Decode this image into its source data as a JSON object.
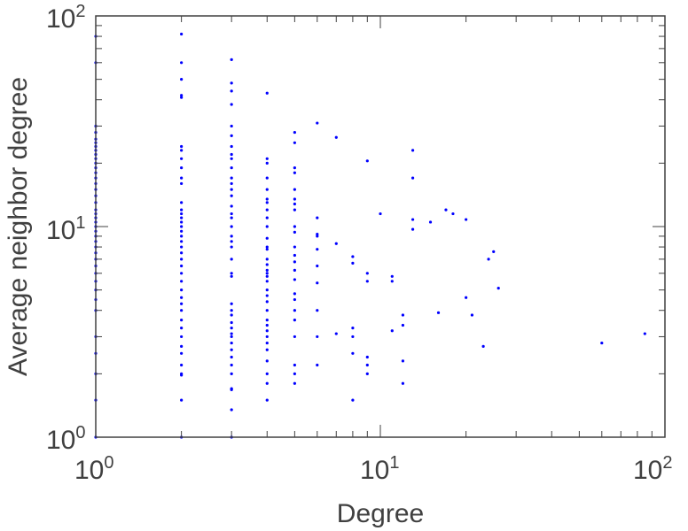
{
  "chart_data": {
    "type": "scatter",
    "title": "",
    "xlabel": "Degree",
    "ylabel": "Average neighbor degree",
    "xscale": "log",
    "yscale": "log",
    "xlim": [
      1,
      100
    ],
    "ylim": [
      1,
      100
    ],
    "grid": false,
    "x_ticks": [
      {
        "value": 1,
        "base": "10",
        "exp": "0"
      },
      {
        "value": 10,
        "base": "10",
        "exp": "1"
      },
      {
        "value": 100,
        "base": "10",
        "exp": "2"
      }
    ],
    "y_ticks": [
      {
        "value": 1,
        "base": "10",
        "exp": "0"
      },
      {
        "value": 10,
        "base": "10",
        "exp": "1"
      },
      {
        "value": 100,
        "base": "10",
        "exp": "2"
      }
    ],
    "marker_color": "#0000ff",
    "axis_color": "#404040",
    "points": [
      [
        1,
        80
      ],
      [
        1,
        60
      ],
      [
        1,
        30
      ],
      [
        1,
        28
      ],
      [
        1,
        26
      ],
      [
        1,
        25
      ],
      [
        1,
        24
      ],
      [
        1,
        23
      ],
      [
        1,
        22
      ],
      [
        1,
        21
      ],
      [
        1,
        20
      ],
      [
        1,
        19
      ],
      [
        1,
        18
      ],
      [
        1,
        17
      ],
      [
        1,
        16
      ],
      [
        1,
        15
      ],
      [
        1,
        14
      ],
      [
        1,
        13
      ],
      [
        1,
        12
      ],
      [
        1,
        11.5
      ],
      [
        1,
        11
      ],
      [
        1,
        10.5
      ],
      [
        1,
        10
      ],
      [
        1,
        9.5
      ],
      [
        1,
        9
      ],
      [
        1,
        8.5
      ],
      [
        1,
        8
      ],
      [
        1,
        7.5
      ],
      [
        1,
        7
      ],
      [
        1,
        6.5
      ],
      [
        1,
        6
      ],
      [
        1,
        5.5
      ],
      [
        1,
        5
      ],
      [
        1,
        4.5
      ],
      [
        1,
        4
      ],
      [
        1,
        3
      ],
      [
        1,
        2.5
      ],
      [
        1,
        2
      ],
      [
        1,
        1.5
      ],
      [
        1,
        1
      ],
      [
        2,
        82
      ],
      [
        2,
        60
      ],
      [
        2,
        50
      ],
      [
        2,
        42
      ],
      [
        2,
        41
      ],
      [
        2,
        24
      ],
      [
        2,
        23
      ],
      [
        2,
        21
      ],
      [
        2,
        19
      ],
      [
        2,
        17
      ],
      [
        2,
        16
      ],
      [
        2,
        13
      ],
      [
        2,
        12
      ],
      [
        2,
        11.5
      ],
      [
        2,
        11
      ],
      [
        2,
        10.5
      ],
      [
        2,
        10
      ],
      [
        2,
        9.5
      ],
      [
        2,
        9
      ],
      [
        2,
        8.5
      ],
      [
        2,
        8
      ],
      [
        2,
        7.5
      ],
      [
        2,
        7
      ],
      [
        2,
        6.5
      ],
      [
        2,
        6
      ],
      [
        2,
        5.5
      ],
      [
        2,
        5
      ],
      [
        2,
        4.6
      ],
      [
        2,
        4.3
      ],
      [
        2,
        4
      ],
      [
        2,
        3.6
      ],
      [
        2,
        3.3
      ],
      [
        2,
        3
      ],
      [
        2,
        2.7
      ],
      [
        2,
        2.5
      ],
      [
        2,
        2.2
      ],
      [
        2,
        2
      ],
      [
        2,
        1.97
      ],
      [
        2,
        1.5
      ],
      [
        2,
        1
      ],
      [
        3,
        62
      ],
      [
        3,
        48
      ],
      [
        3,
        44
      ],
      [
        3,
        38
      ],
      [
        3,
        30
      ],
      [
        3,
        27
      ],
      [
        3,
        24
      ],
      [
        3,
        22
      ],
      [
        3,
        21
      ],
      [
        3,
        19
      ],
      [
        3,
        17
      ],
      [
        3,
        16
      ],
      [
        3,
        15
      ],
      [
        3,
        14
      ],
      [
        3,
        12.5
      ],
      [
        3,
        11.5
      ],
      [
        3,
        11
      ],
      [
        3,
        10
      ],
      [
        3,
        9
      ],
      [
        3,
        8.5
      ],
      [
        3,
        8
      ],
      [
        3,
        7
      ],
      [
        3,
        6
      ],
      [
        3,
        5.8
      ],
      [
        3,
        4.3
      ],
      [
        3,
        4
      ],
      [
        3,
        3.8
      ],
      [
        3,
        3.5
      ],
      [
        3,
        3.3
      ],
      [
        3,
        3.1
      ],
      [
        3,
        3
      ],
      [
        3,
        2.8
      ],
      [
        3,
        2.6
      ],
      [
        3,
        2.4
      ],
      [
        3,
        2.2
      ],
      [
        3,
        2
      ],
      [
        3,
        1.7
      ],
      [
        3,
        1.68
      ],
      [
        3,
        1.35
      ],
      [
        3,
        1
      ],
      [
        4,
        43
      ],
      [
        4,
        21
      ],
      [
        4,
        20
      ],
      [
        4,
        17
      ],
      [
        4,
        15
      ],
      [
        4,
        13.5
      ],
      [
        4,
        13
      ],
      [
        4,
        12
      ],
      [
        4,
        11
      ],
      [
        4,
        10
      ],
      [
        4,
        8.8
      ],
      [
        4,
        8
      ],
      [
        4,
        7.8
      ],
      [
        4,
        7
      ],
      [
        4,
        6.6
      ],
      [
        4,
        6.2
      ],
      [
        4,
        6
      ],
      [
        4,
        5.8
      ],
      [
        4,
        5.5
      ],
      [
        4,
        5
      ],
      [
        4,
        4.7
      ],
      [
        4,
        4.4
      ],
      [
        4,
        4
      ],
      [
        4,
        3.6
      ],
      [
        4,
        3.4
      ],
      [
        4,
        3.2
      ],
      [
        4,
        3
      ],
      [
        4,
        2.8
      ],
      [
        4,
        2.6
      ],
      [
        4,
        2.3
      ],
      [
        4,
        2
      ],
      [
        4,
        1.8
      ],
      [
        4,
        1.5
      ],
      [
        5,
        28
      ],
      [
        5,
        25
      ],
      [
        5,
        19
      ],
      [
        5,
        18
      ],
      [
        5,
        15
      ],
      [
        5,
        13.5
      ],
      [
        5,
        12.8
      ],
      [
        5,
        12
      ],
      [
        5,
        10
      ],
      [
        5,
        9.4
      ],
      [
        5,
        8
      ],
      [
        5,
        7.3
      ],
      [
        5,
        6.8
      ],
      [
        5,
        6.2
      ],
      [
        5,
        5.6
      ],
      [
        5,
        4.8
      ],
      [
        5,
        4.5
      ],
      [
        5,
        4
      ],
      [
        5,
        3.6
      ],
      [
        5,
        3
      ],
      [
        5,
        2.2
      ],
      [
        5,
        2
      ],
      [
        5,
        1.8
      ],
      [
        6,
        31
      ],
      [
        6,
        11
      ],
      [
        6,
        9.2
      ],
      [
        6,
        9
      ],
      [
        6,
        7.8
      ],
      [
        6,
        6.5
      ],
      [
        6,
        5.4
      ],
      [
        6,
        4
      ],
      [
        6,
        3
      ],
      [
        6,
        2.2
      ],
      [
        7,
        26.5
      ],
      [
        7,
        8.3
      ],
      [
        7,
        3.1
      ],
      [
        8,
        7.2
      ],
      [
        8,
        6.7
      ],
      [
        8,
        3.3
      ],
      [
        8,
        3
      ],
      [
        8,
        2.5
      ],
      [
        8,
        1.5
      ],
      [
        9,
        20.5
      ],
      [
        9,
        6
      ],
      [
        9,
        5.5
      ],
      [
        9,
        2.4
      ],
      [
        9,
        2.2
      ],
      [
        9,
        2
      ],
      [
        10,
        11.5
      ],
      [
        11,
        5.8
      ],
      [
        11,
        5.5
      ],
      [
        11,
        3.2
      ],
      [
        12,
        3.8
      ],
      [
        12,
        3.4
      ],
      [
        12,
        2.3
      ],
      [
        12,
        1.8
      ],
      [
        13,
        23
      ],
      [
        13,
        17
      ],
      [
        13,
        10.8
      ],
      [
        13,
        9.7
      ],
      [
        15,
        10.5
      ],
      [
        16,
        3.9
      ],
      [
        17,
        12
      ],
      [
        18,
        11.5
      ],
      [
        20,
        10.8
      ],
      [
        20,
        4.6
      ],
      [
        21,
        3.8
      ],
      [
        23,
        2.7
      ],
      [
        24,
        7
      ],
      [
        25,
        7.6
      ],
      [
        26,
        5.1
      ],
      [
        60,
        2.8
      ],
      [
        85,
        3.1
      ]
    ]
  }
}
